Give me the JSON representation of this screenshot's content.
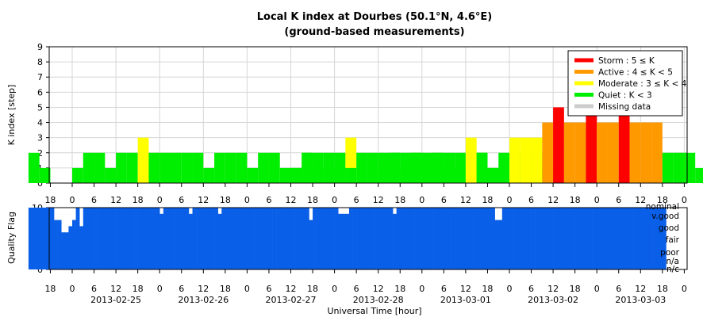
{
  "chart_data": [
    {
      "type": "bar",
      "title": "Local K index at Dourbes (50.1°N, 4.6°E)",
      "subtitle": "(ground-based measurements)",
      "ylabel": "K index [step]",
      "ylim": [
        0,
        9
      ],
      "yticks": [
        0,
        1,
        2,
        3,
        4,
        5,
        6,
        7,
        8,
        9
      ],
      "grid": true,
      "bar_interval_hours": 3,
      "x_start": "2013-02-24 12:00",
      "x_end": "2013-03-03 21:00",
      "segments": [
        {
          "start": "2013-02-24 12:00",
          "values": [
            2,
            1,
            0,
            0,
            1,
            2,
            2,
            1,
            2,
            2,
            3,
            2,
            2,
            2,
            2,
            2,
            1,
            2,
            2,
            2,
            1,
            2,
            2,
            1,
            1,
            2,
            2,
            1,
            2,
            3,
            2,
            2,
            2,
            2,
            2,
            2,
            1,
            2,
            2,
            1,
            2,
            2,
            1,
            1,
            2,
            2,
            2,
            1
          ]
        },
        {
          "start": "2013-02-27 12:00",
          "values": [
            1,
            2,
            1,
            2,
            1,
            1
          ]
        },
        {
          "start": "2013-02-28 12:00",
          "values": [
            1,
            2,
            1,
            2,
            2,
            2,
            1,
            2,
            3,
            2,
            1,
            2,
            3,
            3,
            3,
            4,
            5,
            4,
            4,
            5,
            4,
            4,
            5,
            4,
            4,
            4,
            2,
            2,
            2,
            1,
            2,
            2,
            2,
            2,
            3,
            2,
            2,
            3,
            3,
            3,
            2,
            2,
            2,
            3,
            2,
            2,
            1,
            2,
            2,
            2,
            2,
            3
          ]
        }
      ],
      "legend": {
        "placement": "top-right",
        "entries": [
          {
            "label": "Storm : 5 ≤ K",
            "color": "#ff0000",
            "min": 5
          },
          {
            "label": "Active : 4 ≤ K < 5",
            "color": "#ff9900",
            "min": 4
          },
          {
            "label": "Moderate : 3 ≤ K < 4",
            "color": "#ffff00",
            "min": 3
          },
          {
            "label": "Quiet : K < 3",
            "color": "#00ee00",
            "min": 0
          },
          {
            "label": "Missing data",
            "color": "#cccccc"
          }
        ]
      },
      "hour_tick_labels": [
        "0",
        "6",
        "12",
        "18"
      ]
    },
    {
      "type": "area",
      "ylabel": "Quality Flag",
      "ylim": [
        0,
        10
      ],
      "yticks": [
        0,
        2,
        4,
        6,
        8,
        10
      ],
      "color": "#0a5fe8",
      "flag_labels": [
        "nominal",
        "v.good",
        "good",
        "fair",
        "poor",
        "n/a",
        "n/c"
      ],
      "xlabel": "Universal Time [hour]",
      "date_labels": [
        "2013-02-25",
        "2013-02-26",
        "2013-02-27",
        "2013-02-28",
        "2013-03-01",
        "2013-03-02",
        "2013-03-03"
      ],
      "hour_tick_labels": [
        "0",
        "6",
        "12",
        "18"
      ],
      "quality_step_hours": 1,
      "quality_start": "2013-02-24 12:00",
      "quality_values": [
        10,
        10,
        10,
        10,
        10,
        10,
        10,
        8,
        8,
        6,
        6,
        7,
        8,
        10,
        7,
        10,
        10,
        10,
        10,
        10,
        10,
        10,
        10,
        10,
        10,
        10,
        10,
        10,
        10,
        10,
        10,
        10,
        10,
        10,
        10,
        10,
        9,
        10,
        10,
        10,
        10,
        10,
        10,
        10,
        9,
        10,
        10,
        10,
        10,
        10,
        10,
        10,
        9,
        10,
        10,
        10,
        10,
        10,
        10,
        10,
        10,
        10,
        10,
        10,
        10,
        10,
        10,
        10,
        10,
        10,
        10,
        10,
        10,
        10,
        10,
        10,
        10,
        8,
        10,
        10,
        10,
        10,
        10,
        10,
        10,
        9,
        9,
        9,
        10,
        10,
        10,
        10,
        10,
        10,
        10,
        10,
        10,
        10,
        10,
        10,
        9,
        10,
        10,
        10,
        10,
        10,
        10,
        10,
        10,
        10,
        10,
        10,
        10,
        10,
        10,
        10,
        10,
        10,
        10,
        10,
        10,
        10,
        10,
        10,
        10,
        10,
        10,
        10,
        8,
        8,
        10,
        10,
        10,
        10,
        10,
        10,
        10,
        10,
        10,
        10,
        10,
        10,
        10,
        10,
        10,
        10,
        10,
        10,
        10,
        10,
        10,
        10,
        10,
        10,
        10,
        10,
        10,
        10,
        10,
        10,
        10,
        10,
        10,
        10,
        10,
        10,
        10,
        10,
        10,
        10,
        10,
        10,
        10,
        10,
        10,
        10,
        10,
        10,
        10,
        10,
        10,
        10,
        10,
        10,
        10,
        10,
        10,
        10,
        10,
        10,
        10,
        10,
        10,
        10,
        10,
        10,
        10,
        10
      ]
    }
  ]
}
